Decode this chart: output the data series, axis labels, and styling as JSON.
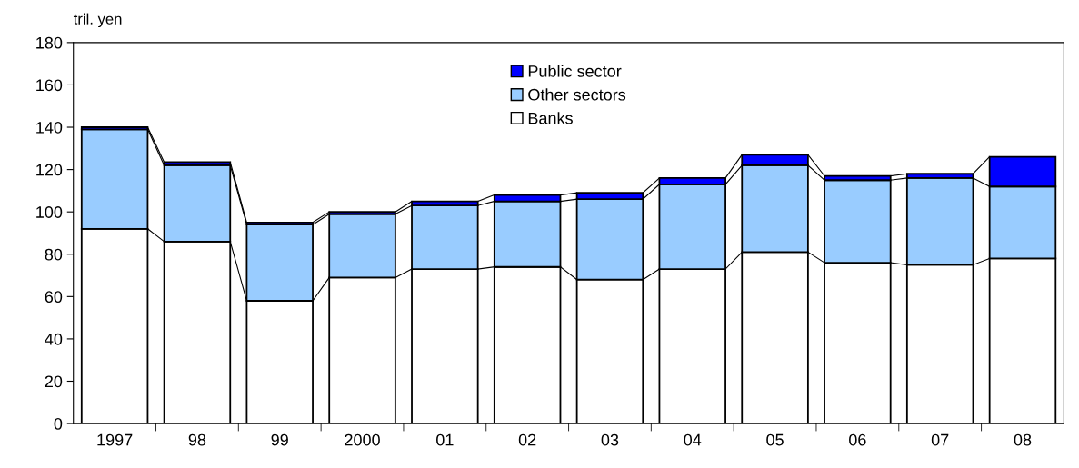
{
  "chart_data": {
    "type": "bar",
    "stacked": true,
    "ylabel": "tril. yen",
    "categories": [
      "1997",
      "98",
      "99",
      "2000",
      "01",
      "02",
      "03",
      "04",
      "05",
      "06",
      "07",
      "08"
    ],
    "series": [
      {
        "name": "Banks",
        "color": "#ffffff",
        "values": [
          92,
          86,
          58,
          69,
          73,
          74,
          68,
          73,
          81,
          76,
          75,
          78
        ]
      },
      {
        "name": "Other sectors",
        "color": "#99ccff",
        "values": [
          47,
          36,
          36,
          30,
          30,
          31,
          38,
          40,
          41,
          39,
          41,
          34
        ]
      },
      {
        "name": "Public sector",
        "color": "#0000ff",
        "values": [
          1,
          1.5,
          1,
          1,
          2,
          3,
          3,
          3,
          5,
          2,
          2,
          14
        ]
      }
    ],
    "ylim": [
      0,
      180
    ],
    "yticks": [
      0,
      20,
      40,
      60,
      80,
      100,
      120,
      140,
      160,
      180
    ],
    "grid": false,
    "legend": "top"
  }
}
